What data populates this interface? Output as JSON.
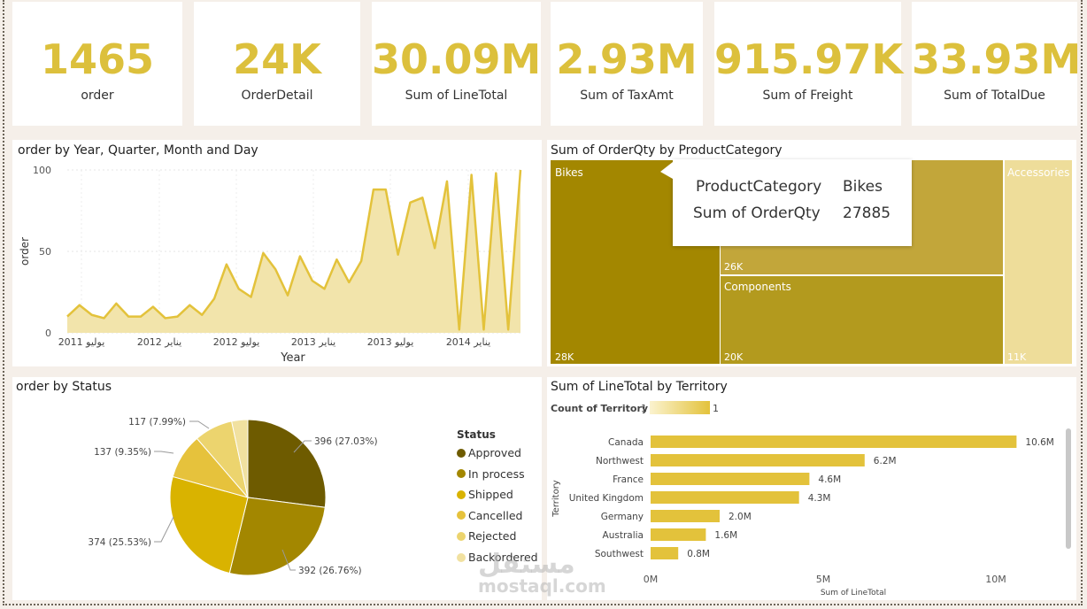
{
  "kpis": [
    {
      "value": "1465",
      "label": "order"
    },
    {
      "value": "24K",
      "label": "OrderDetail"
    },
    {
      "value": "30.09M",
      "label": "Sum of LineTotal"
    },
    {
      "value": "2.93M",
      "label": "Sum of TaxAmt"
    },
    {
      "value": "915.97K",
      "label": "Sum of Freight"
    },
    {
      "value": "33.93M",
      "label": "Sum of TotalDue"
    }
  ],
  "line_visual": {
    "title": "order by Year, Quarter, Month and Day",
    "xlabel": "Year",
    "ylabel": "order",
    "yticks": [
      "100",
      "50",
      "0"
    ],
    "xticks": [
      "يوليو 2011",
      "يناير 2012",
      "يوليو 2012",
      "يناير 2013",
      "يوليو 2013",
      "يناير 2014"
    ]
  },
  "treemap_visual": {
    "title": "Sum of OrderQty by ProductCategory",
    "tooltip": {
      "key1": "ProductCategory",
      "val1": "Bikes",
      "key2": "Sum of OrderQty",
      "val2": "27885"
    },
    "labels": {
      "bikes": "Bikes",
      "bikes_value": "28K",
      "clothing_value": "26K",
      "components": "Components",
      "components_value": "20K",
      "accessories": "Accessories",
      "accessories_value": "11K"
    }
  },
  "pie_visual": {
    "title": "order by Status",
    "legend_title": "Status",
    "slice_labels": [
      "396 (27.03%)",
      "392 (26.76%)",
      "374 (25.53%)",
      "137 (9.35%)",
      "117 (7.99%)"
    ]
  },
  "bar_visual": {
    "title": "Sum of LineTotal by Territory",
    "legend_label": "Count of Territory",
    "legend_min": "1",
    "legend_max": "1",
    "ylabel": "Territory",
    "xlabel": "Sum of LineTotal",
    "xticks": [
      "0M",
      "5M",
      "10M"
    ]
  },
  "watermark": {
    "arabic": "مستقل",
    "latin": "mostaql.com"
  },
  "colors": {
    "kpi": "#dcc03c",
    "line": "#e3c23b",
    "area": "#f2e4ab",
    "bikes": "#a38700",
    "clothing": "#c2a63a",
    "components": "#b39a1e",
    "accessories": "#eedd9a",
    "bar": "#e3c23b"
  },
  "chart_data": [
    {
      "type": "area",
      "title": "order by Year, Quarter, Month and Day",
      "xlabel": "Year",
      "ylabel": "order",
      "ylim": [
        0,
        100
      ],
      "x": [
        "2011-05",
        "2011-06",
        "2011-07",
        "2011-08",
        "2011-09",
        "2011-10",
        "2011-11",
        "2011-12",
        "2012-01",
        "2012-02",
        "2012-03",
        "2012-04",
        "2012-05",
        "2012-06",
        "2012-07",
        "2012-08",
        "2012-09",
        "2012-10",
        "2012-11",
        "2012-12",
        "2013-01",
        "2013-02",
        "2013-03",
        "2013-04",
        "2013-05",
        "2013-06",
        "2013-07",
        "2013-08",
        "2013-09",
        "2013-10",
        "2013-11",
        "2013-12",
        "2014-01",
        "2014-02",
        "2014-03",
        "2014-04",
        "2014-05",
        "2014-06"
      ],
      "values": [
        10,
        17,
        11,
        9,
        18,
        10,
        10,
        16,
        9,
        10,
        17,
        11,
        21,
        42,
        27,
        22,
        49,
        39,
        23,
        47,
        32,
        27,
        45,
        31,
        44,
        88,
        88,
        48,
        80,
        83,
        52,
        93,
        2,
        97,
        2,
        98,
        2,
        100
      ],
      "grid": true
    },
    {
      "type": "treemap",
      "title": "Sum of OrderQty by ProductCategory",
      "categories": [
        "Bikes",
        "Clothing",
        "Components",
        "Accessories"
      ],
      "values": [
        27885,
        26000,
        20000,
        11000
      ]
    },
    {
      "type": "pie",
      "title": "order by Status",
      "categories": [
        "Approved",
        "In process",
        "Shipped",
        "Cancelled",
        "Rejected",
        "Backordered"
      ],
      "values": [
        396,
        392,
        374,
        137,
        117,
        49
      ]
    },
    {
      "type": "bar",
      "title": "Sum of LineTotal by Territory",
      "categories": [
        "Canada",
        "Northwest",
        "France",
        "United Kingdom",
        "Germany",
        "Australia",
        "Southwest"
      ],
      "values": [
        10.6,
        6.2,
        4.6,
        4.3,
        2.0,
        1.6,
        0.8
      ],
      "value_labels": [
        "10.6M",
        "6.2M",
        "4.6M",
        "4.3M",
        "2.0M",
        "1.6M",
        "0.8M"
      ],
      "xlabel": "Sum of LineTotal",
      "ylabel": "Territory",
      "xlim": [
        0,
        11
      ]
    }
  ],
  "pie_colors": [
    "#6e5b00",
    "#a38700",
    "#d9b300",
    "#e6c23c",
    "#ecd46e",
    "#f1e1a0"
  ]
}
